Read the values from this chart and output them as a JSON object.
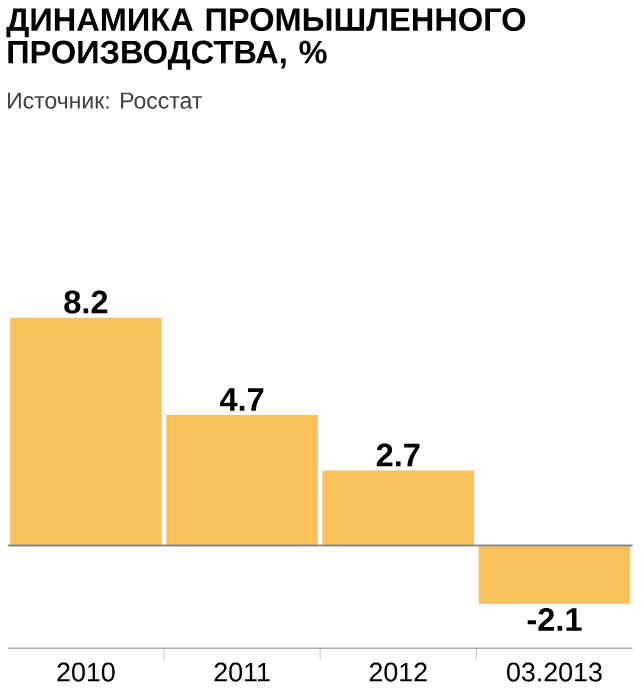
{
  "chart_data": {
    "type": "bar",
    "title": "ДИНАМИКА ПРОМЫШЛЕННОГО ПРОИЗВОДСТВА, %",
    "annotations": [
      "Источник: Росстат"
    ],
    "categories": [
      "2010",
      "2011",
      "2012",
      "03.2013"
    ],
    "values": [
      8.2,
      4.7,
      2.7,
      -2.1
    ],
    "color": "#f9c25a",
    "data_labels": true,
    "ref_lines": [
      {
        "axis": "y",
        "value": 0,
        "color": "#888888"
      }
    ]
  }
}
